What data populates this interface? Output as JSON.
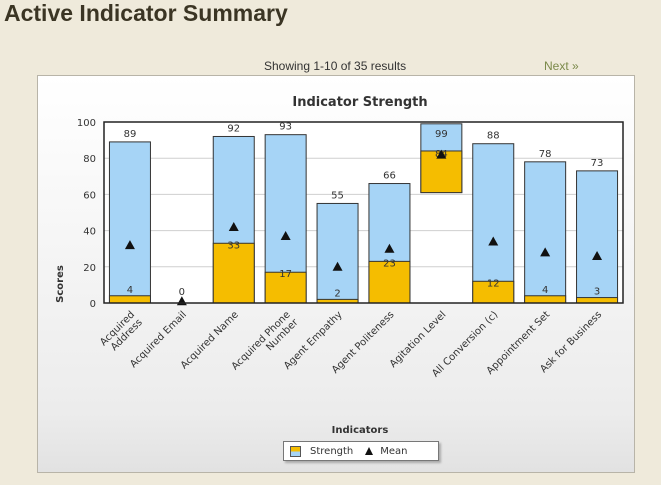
{
  "page": {
    "title": "Active Indicator Summary",
    "pager_text": "Showing 1-10 of 35 results",
    "next_label": "Next »"
  },
  "colors": {
    "page_bg": "#efeadb",
    "upper_bar": "#a6d4f6",
    "lower_bar": "#f5bd00",
    "mean_marker": "#111111"
  },
  "chart_data": {
    "type": "bar",
    "title": "Indicator Strength",
    "xlabel": "Indicators",
    "ylabel": "Scores",
    "ylim": [
      0,
      100
    ],
    "yticks": [
      0,
      20,
      40,
      60,
      80,
      100
    ],
    "grid": true,
    "legend_position": "bottom-center",
    "categories": [
      "Acquired Address",
      "Acquired Email",
      "Acquired Name",
      "Acquired Phone Number",
      "Agent Empathy",
      "Agent Politeness",
      "Agitation Level",
      "All Conversion (c)",
      "Appointment Set",
      "Ask for Business"
    ],
    "category_lines": [
      [
        "Acquired",
        "Address"
      ],
      [
        "Acquired Email"
      ],
      [
        "Acquired Name"
      ],
      [
        "Acquired Phone",
        "Number"
      ],
      [
        "Agent Empathy"
      ],
      [
        "Agent Politeness"
      ],
      [
        "Agitation Level"
      ],
      [
        "All Conversion (c)"
      ],
      [
        "Appointment Set"
      ],
      [
        "Ask for Business"
      ]
    ],
    "series": [
      {
        "name": "Strength",
        "high": [
          89,
          0,
          92,
          93,
          55,
          66,
          99,
          88,
          78,
          73
        ],
        "low": [
          4,
          0,
          33,
          17,
          2,
          23,
          84,
          12,
          4,
          3
        ],
        "low_labels": [
          "4",
          "0",
          "33",
          "17",
          "2",
          "23",
          "84",
          "12",
          "4",
          "3"
        ],
        "high_labels": [
          "89",
          "0",
          "92",
          "93",
          "55",
          "66",
          "99",
          "88",
          "78",
          "73"
        ]
      },
      {
        "name": "Mean",
        "values": [
          32,
          1,
          42,
          37,
          20,
          30,
          82,
          34,
          28,
          26
        ]
      }
    ],
    "agitation_floor": 61
  }
}
